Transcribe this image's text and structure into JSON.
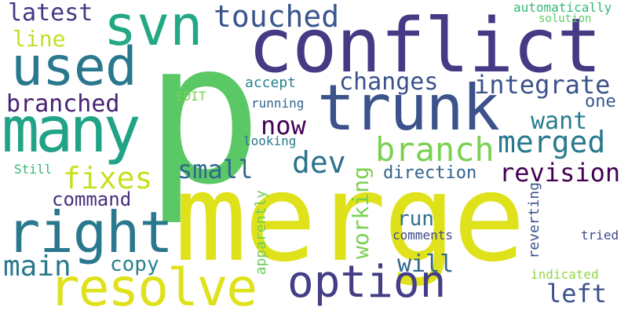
{
  "words": [
    {
      "text": "merge",
      "color": "#dfe21b"
    },
    {
      "text": "p",
      "color": "#5ac864"
    },
    {
      "text": "conflict",
      "color": "#453a84"
    },
    {
      "text": "trunk",
      "color": "#3b528b"
    },
    {
      "text": "svn",
      "color": "#22a884"
    },
    {
      "text": "used",
      "color": "#2a788e"
    },
    {
      "text": "many",
      "color": "#20a386"
    },
    {
      "text": "right",
      "color": "#2a788e"
    },
    {
      "text": "resolve",
      "color": "#dfe21b"
    },
    {
      "text": "option",
      "color": "#433e85"
    },
    {
      "text": "touched",
      "color": "#3a548c"
    },
    {
      "text": "latest",
      "color": "#453882"
    },
    {
      "text": "line",
      "color": "#c2df23"
    },
    {
      "text": "changes",
      "color": "#3b528b"
    },
    {
      "text": "integrate",
      "color": "#3b528b"
    },
    {
      "text": "branched",
      "color": "#482173"
    },
    {
      "text": "now",
      "color": "#440154"
    },
    {
      "text": "one",
      "color": "#39568c"
    },
    {
      "text": "branch",
      "color": "#7ad151"
    },
    {
      "text": "want",
      "color": "#287d8e"
    },
    {
      "text": "merged",
      "color": "#2a788e"
    },
    {
      "text": "dev",
      "color": "#2c728e"
    },
    {
      "text": "small",
      "color": "#31688e"
    },
    {
      "text": "fixes",
      "color": "#c8e020"
    },
    {
      "text": "revision",
      "color": "#440154"
    },
    {
      "text": "command",
      "color": "#472d7b"
    },
    {
      "text": "direction",
      "color": "#33638d"
    },
    {
      "text": "main",
      "color": "#2a788e"
    },
    {
      "text": "copy",
      "color": "#26828e"
    },
    {
      "text": "run",
      "color": "#2c728e"
    },
    {
      "text": "working",
      "color": "#7ad151"
    },
    {
      "text": "will",
      "color": "#31688e"
    },
    {
      "text": "left",
      "color": "#3b528b"
    },
    {
      "text": "automatically",
      "color": "#35b779"
    },
    {
      "text": "solution",
      "color": "#5ec962"
    },
    {
      "text": "accept",
      "color": "#26828e"
    },
    {
      "text": "EDIT",
      "color": "#7ad151"
    },
    {
      "text": "running",
      "color": "#33638d"
    },
    {
      "text": "looking",
      "color": "#2a788e"
    },
    {
      "text": "Still",
      "color": "#35b779"
    },
    {
      "text": "apparently",
      "color": "#6ccd5a"
    },
    {
      "text": "comments",
      "color": "#3e4989"
    },
    {
      "text": "reverting",
      "color": "#3b528b"
    },
    {
      "text": "tried",
      "color": "#3e4a89"
    },
    {
      "text": "indicated",
      "color": "#8fd744"
    }
  ]
}
